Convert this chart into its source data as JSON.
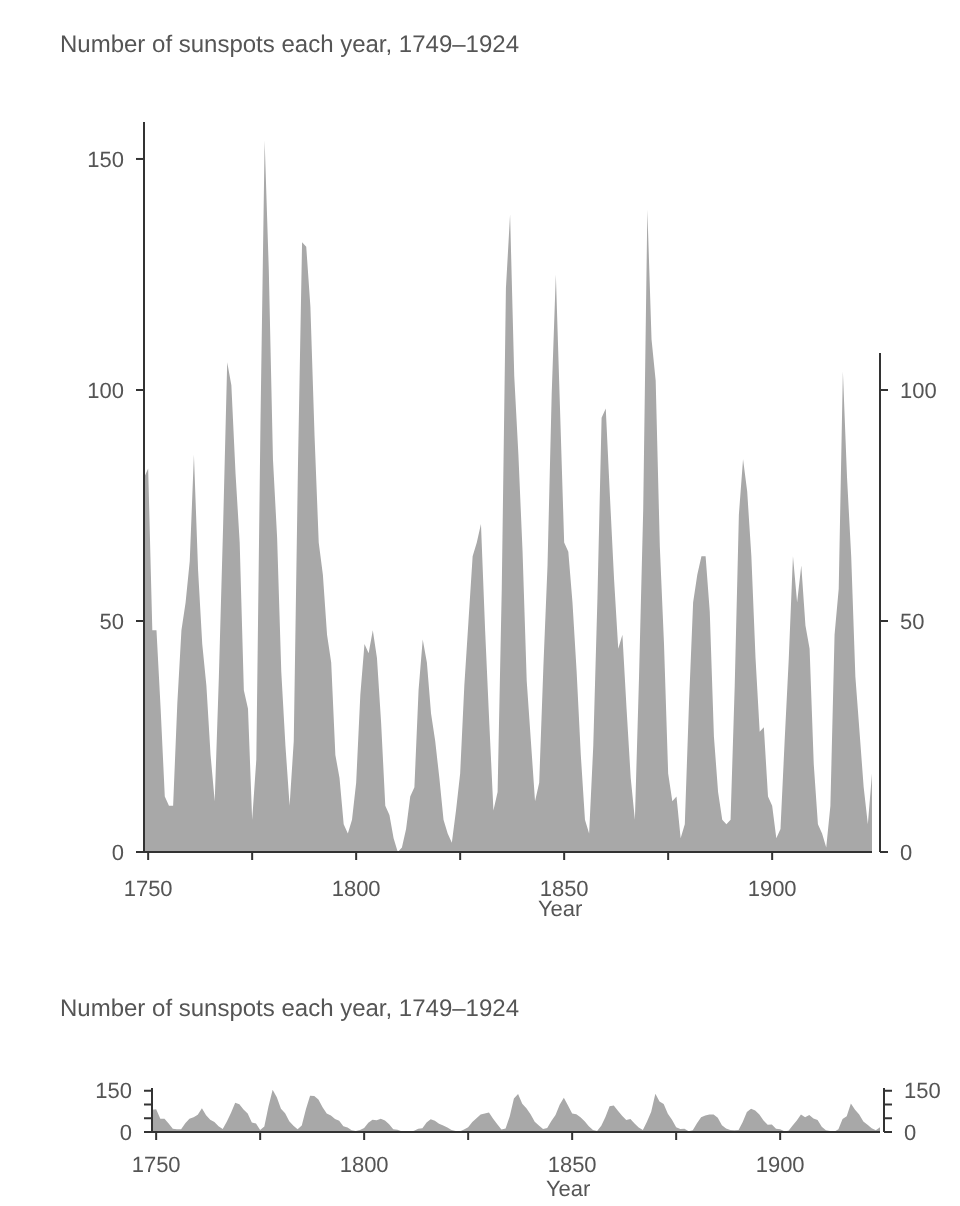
{
  "chart_data": [
    {
      "type": "area",
      "title": "Number of sunspots each year, 1749–1924",
      "xlabel": "Year",
      "color": "#a8a8a8",
      "x": [
        1749,
        1750,
        1751,
        1752,
        1753,
        1754,
        1755,
        1756,
        1757,
        1758,
        1759,
        1760,
        1761,
        1762,
        1763,
        1764,
        1765,
        1766,
        1767,
        1768,
        1769,
        1770,
        1771,
        1772,
        1773,
        1774,
        1775,
        1776,
        1777,
        1778,
        1779,
        1780,
        1781,
        1782,
        1783,
        1784,
        1785,
        1786,
        1787,
        1788,
        1789,
        1790,
        1791,
        1792,
        1793,
        1794,
        1795,
        1796,
        1797,
        1798,
        1799,
        1800,
        1801,
        1802,
        1803,
        1804,
        1805,
        1806,
        1807,
        1808,
        1809,
        1810,
        1811,
        1812,
        1813,
        1814,
        1815,
        1816,
        1817,
        1818,
        1819,
        1820,
        1821,
        1822,
        1823,
        1824,
        1825,
        1826,
        1827,
        1828,
        1829,
        1830,
        1831,
        1832,
        1833,
        1834,
        1835,
        1836,
        1837,
        1838,
        1839,
        1840,
        1841,
        1842,
        1843,
        1844,
        1845,
        1846,
        1847,
        1848,
        1849,
        1850,
        1851,
        1852,
        1853,
        1854,
        1855,
        1856,
        1857,
        1858,
        1859,
        1860,
        1861,
        1862,
        1863,
        1864,
        1865,
        1866,
        1867,
        1868,
        1869,
        1870,
        1871,
        1872,
        1873,
        1874,
        1875,
        1876,
        1877,
        1878,
        1879,
        1880,
        1881,
        1882,
        1883,
        1884,
        1885,
        1886,
        1887,
        1888,
        1889,
        1890,
        1891,
        1892,
        1893,
        1894,
        1895,
        1896,
        1897,
        1898,
        1899,
        1900,
        1901,
        1902,
        1903,
        1904,
        1905,
        1906,
        1907,
        1908,
        1909,
        1910,
        1911,
        1912,
        1913,
        1914,
        1915,
        1916,
        1917,
        1918,
        1919,
        1920,
        1921,
        1922,
        1923,
        1924
      ],
      "values": [
        81,
        83,
        48,
        48,
        31,
        12,
        10,
        10,
        32,
        48,
        54,
        63,
        86,
        61,
        45,
        36,
        21,
        11,
        38,
        70,
        106,
        101,
        82,
        67,
        35,
        31,
        7,
        20,
        93,
        154,
        126,
        85,
        68,
        39,
        23,
        10,
        24,
        83,
        132,
        131,
        118,
        90,
        67,
        60,
        47,
        41,
        21,
        16,
        6,
        4,
        7,
        15,
        34,
        45,
        43,
        48,
        42,
        28,
        10,
        8,
        3,
        0,
        1,
        5,
        12,
        14,
        35,
        46,
        41,
        30,
        24,
        16,
        7,
        4,
        2,
        9,
        17,
        36,
        50,
        64,
        67,
        71,
        48,
        28,
        9,
        13,
        57,
        122,
        138,
        103,
        86,
        65,
        37,
        24,
        11,
        15,
        40,
        62,
        99,
        125,
        96,
        67,
        65,
        54,
        39,
        21,
        7,
        4,
        23,
        55,
        94,
        96,
        77,
        59,
        44,
        47,
        31,
        16,
        7,
        38,
        74,
        139,
        111,
        102,
        66,
        45,
        17,
        11,
        12,
        3,
        6,
        32,
        54,
        60,
        64,
        64,
        52,
        25,
        13,
        7,
        6,
        7,
        36,
        73,
        85,
        78,
        64,
        42,
        26,
        27,
        12,
        10,
        3,
        5,
        24,
        42,
        64,
        54,
        62,
        49,
        44,
        19,
        6,
        4,
        1,
        10,
        47,
        57,
        104,
        81,
        64,
        38,
        26,
        14,
        6,
        17
      ],
      "xlim": [
        1749,
        1924
      ],
      "xticks": [
        1750,
        {
          "value": 1775,
          "label": null
        },
        1800,
        {
          "value": 1825,
          "label": null
        },
        1850,
        {
          "value": 1875,
          "label": null
        },
        1900
      ],
      "ylim": [
        0,
        158
      ],
      "yticks": [
        0,
        50,
        100,
        150
      ],
      "y2lim": [
        0,
        108
      ],
      "y2ticks": [
        0,
        50,
        100
      ]
    },
    {
      "type": "area",
      "title": "Number of sunspots each year, 1749–1924",
      "xlabel": "Year",
      "color": "#a8a8a8",
      "x": [
        1749,
        1750,
        1751,
        1752,
        1753,
        1754,
        1755,
        1756,
        1757,
        1758,
        1759,
        1760,
        1761,
        1762,
        1763,
        1764,
        1765,
        1766,
        1767,
        1768,
        1769,
        1770,
        1771,
        1772,
        1773,
        1774,
        1775,
        1776,
        1777,
        1778,
        1779,
        1780,
        1781,
        1782,
        1783,
        1784,
        1785,
        1786,
        1787,
        1788,
        1789,
        1790,
        1791,
        1792,
        1793,
        1794,
        1795,
        1796,
        1797,
        1798,
        1799,
        1800,
        1801,
        1802,
        1803,
        1804,
        1805,
        1806,
        1807,
        1808,
        1809,
        1810,
        1811,
        1812,
        1813,
        1814,
        1815,
        1816,
        1817,
        1818,
        1819,
        1820,
        1821,
        1822,
        1823,
        1824,
        1825,
        1826,
        1827,
        1828,
        1829,
        1830,
        1831,
        1832,
        1833,
        1834,
        1835,
        1836,
        1837,
        1838,
        1839,
        1840,
        1841,
        1842,
        1843,
        1844,
        1845,
        1846,
        1847,
        1848,
        1849,
        1850,
        1851,
        1852,
        1853,
        1854,
        1855,
        1856,
        1857,
        1858,
        1859,
        1860,
        1861,
        1862,
        1863,
        1864,
        1865,
        1866,
        1867,
        1868,
        1869,
        1870,
        1871,
        1872,
        1873,
        1874,
        1875,
        1876,
        1877,
        1878,
        1879,
        1880,
        1881,
        1882,
        1883,
        1884,
        1885,
        1886,
        1887,
        1888,
        1889,
        1890,
        1891,
        1892,
        1893,
        1894,
        1895,
        1896,
        1897,
        1898,
        1899,
        1900,
        1901,
        1902,
        1903,
        1904,
        1905,
        1906,
        1907,
        1908,
        1909,
        1910,
        1911,
        1912,
        1913,
        1914,
        1915,
        1916,
        1917,
        1918,
        1919,
        1920,
        1921,
        1922,
        1923,
        1924
      ],
      "values": [
        81,
        83,
        48,
        48,
        31,
        12,
        10,
        10,
        32,
        48,
        54,
        63,
        86,
        61,
        45,
        36,
        21,
        11,
        38,
        70,
        106,
        101,
        82,
        67,
        35,
        31,
        7,
        20,
        93,
        154,
        126,
        85,
        68,
        39,
        23,
        10,
        24,
        83,
        132,
        131,
        118,
        90,
        67,
        60,
        47,
        41,
        21,
        16,
        6,
        4,
        7,
        15,
        34,
        45,
        43,
        48,
        42,
        28,
        10,
        8,
        3,
        0,
        1,
        5,
        12,
        14,
        35,
        46,
        41,
        30,
        24,
        16,
        7,
        4,
        2,
        9,
        17,
        36,
        50,
        64,
        67,
        71,
        48,
        28,
        9,
        13,
        57,
        122,
        138,
        103,
        86,
        65,
        37,
        24,
        11,
        15,
        40,
        62,
        99,
        125,
        96,
        67,
        65,
        54,
        39,
        21,
        7,
        4,
        23,
        55,
        94,
        96,
        77,
        59,
        44,
        47,
        31,
        16,
        7,
        38,
        74,
        139,
        111,
        102,
        66,
        45,
        17,
        11,
        12,
        3,
        6,
        32,
        54,
        60,
        64,
        64,
        52,
        25,
        13,
        7,
        6,
        7,
        36,
        73,
        85,
        78,
        64,
        42,
        26,
        27,
        12,
        10,
        3,
        5,
        24,
        42,
        64,
        54,
        62,
        49,
        44,
        19,
        6,
        4,
        1,
        10,
        47,
        57,
        104,
        81,
        64,
        38,
        26,
        14,
        6,
        17
      ],
      "xlim": [
        1749,
        1924
      ],
      "xticks": [
        1750,
        {
          "value": 1775,
          "label": null
        },
        1800,
        {
          "value": 1825,
          "label": null
        },
        1850,
        {
          "value": 1875,
          "label": null
        },
        1900
      ],
      "ylim": [
        0,
        160
      ],
      "yticks": [
        0,
        {
          "value": 50,
          "label": null
        },
        {
          "value": 100,
          "label": null
        },
        150
      ],
      "y2lim": [
        0,
        160
      ],
      "y2ticks": [
        0,
        {
          "value": 50,
          "label": null
        },
        {
          "value": 100,
          "label": null
        },
        150
      ]
    }
  ]
}
